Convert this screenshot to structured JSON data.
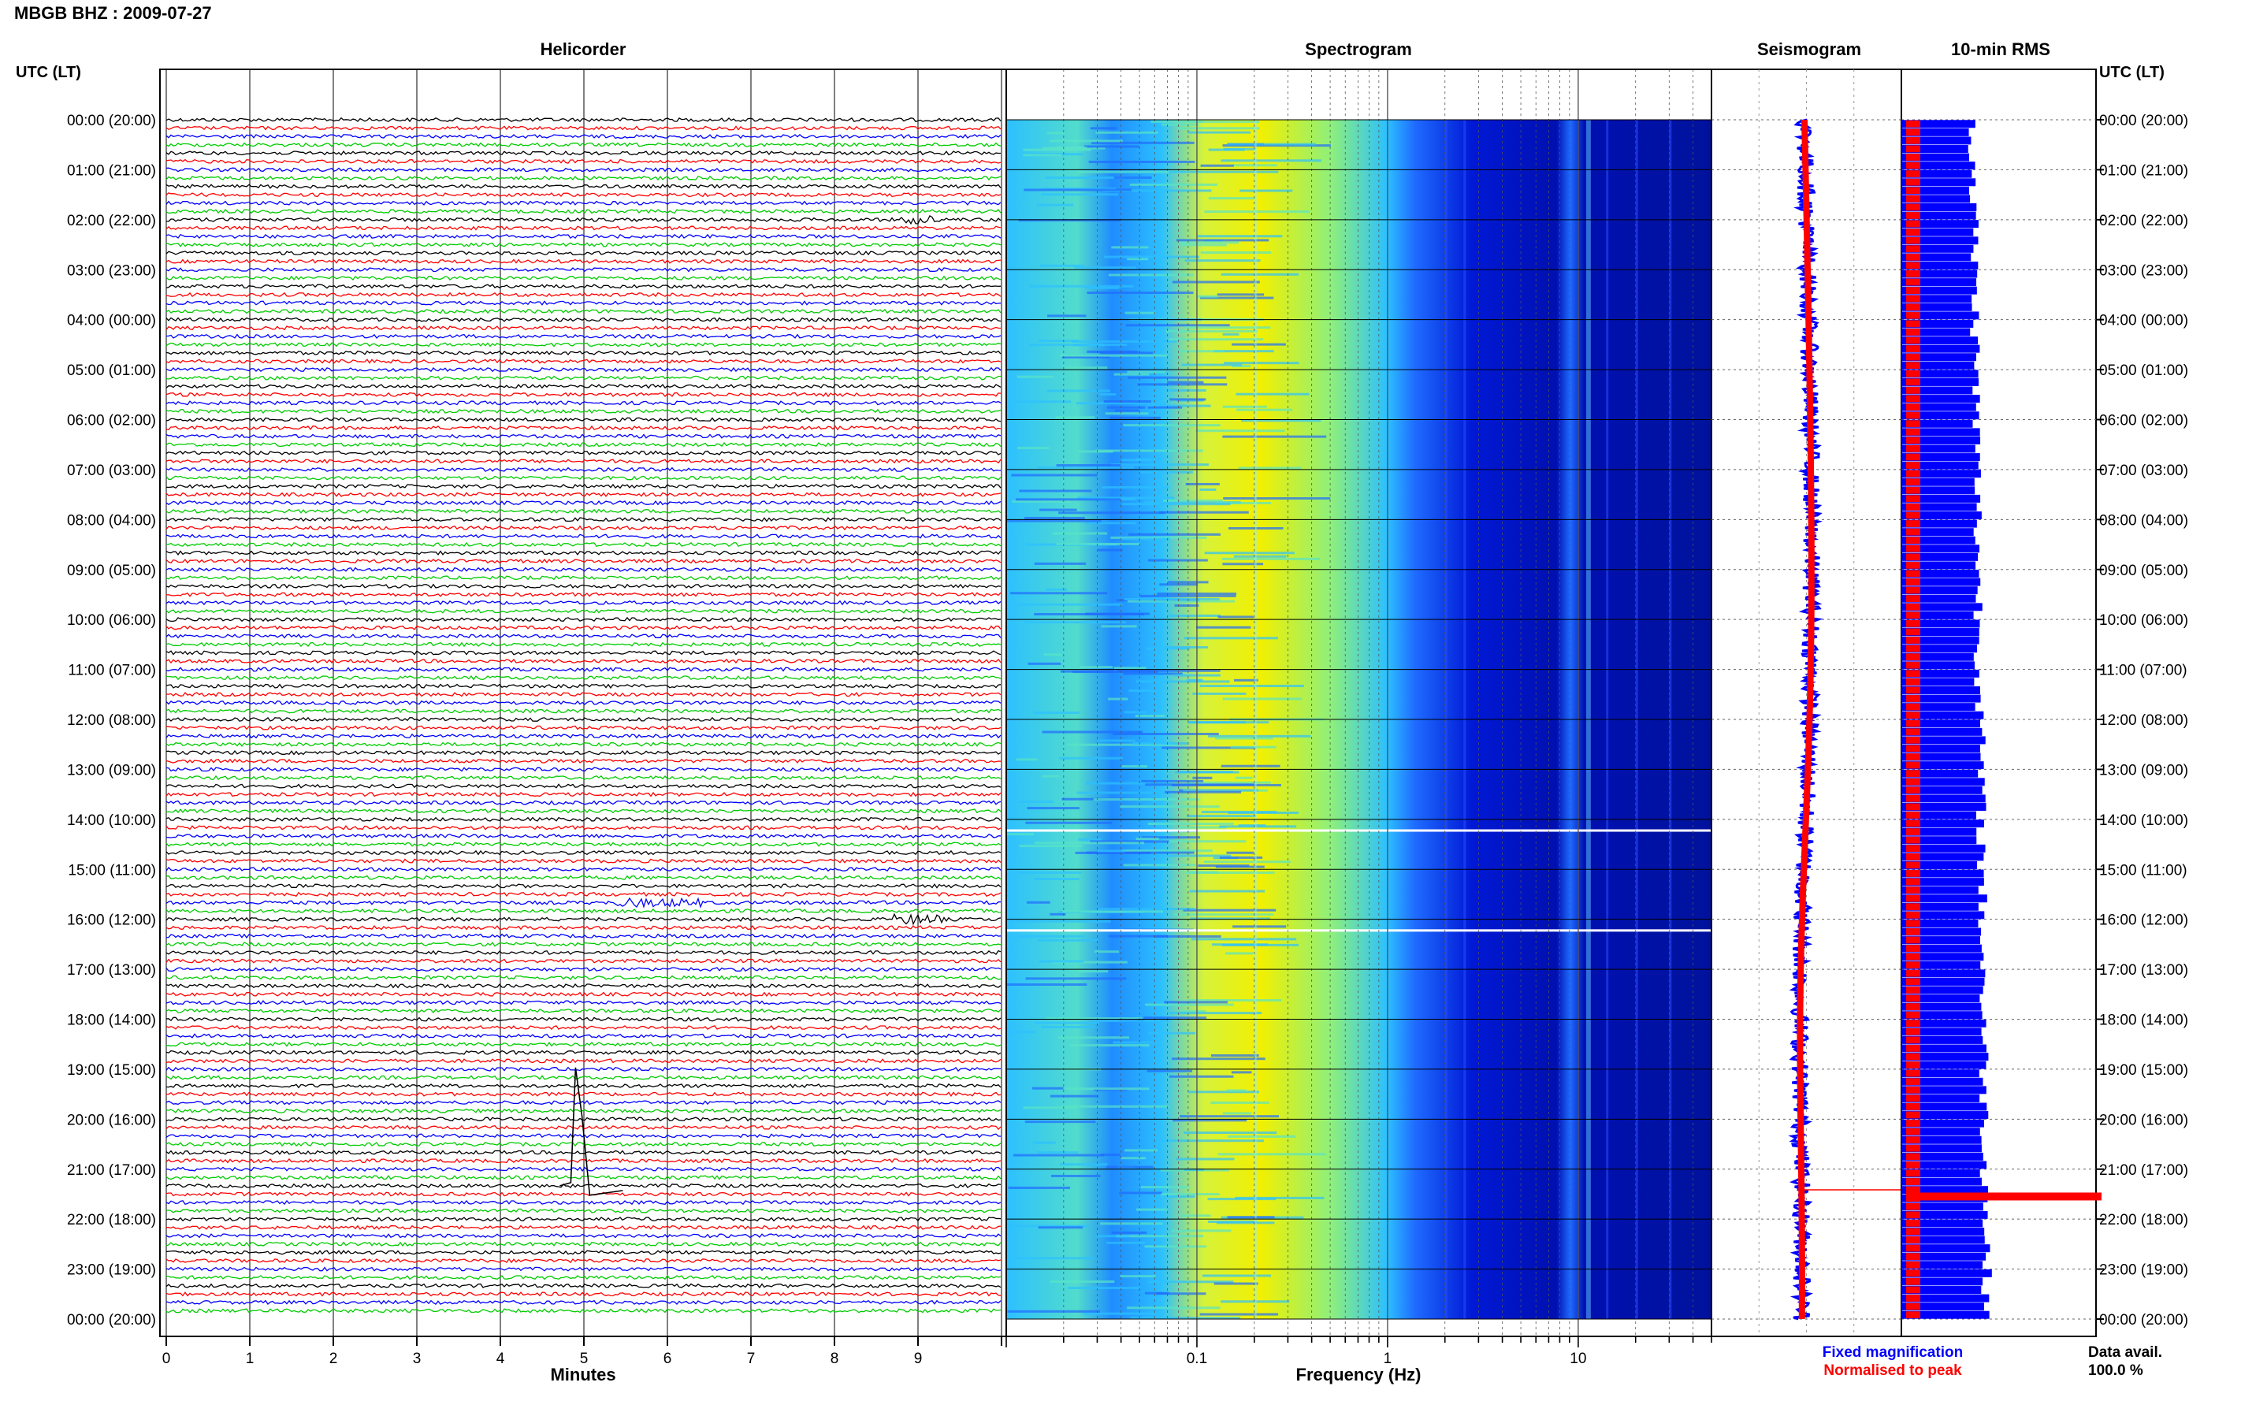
{
  "header": {
    "title": "MBGB BHZ : 2009-07-27",
    "time_label_left": "UTC (LT)",
    "time_label_right": "UTC (LT)"
  },
  "panels": {
    "helicorder": "Helicorder",
    "spectrogram": "Spectrogram",
    "seismogram": "Seismogram",
    "rms": "10-min RMS"
  },
  "chart_data": [
    {
      "type": "line",
      "name": "helicorder",
      "title": "Helicorder",
      "xlabel": "Minutes",
      "x_ticks": [
        "0",
        "1",
        "2",
        "3",
        "4",
        "5",
        "6",
        "7",
        "8",
        "9"
      ],
      "xlim": [
        0,
        10
      ],
      "rows_per_hour": 6,
      "trace_colors": [
        "#000000",
        "#ff0000",
        "#0000ff",
        "#00cc00"
      ],
      "y_tick_labels": [
        "00:00 (20:00)",
        "01:00 (21:00)",
        "02:00 (22:00)",
        "03:00 (23:00)",
        "04:00 (00:00)",
        "05:00 (01:00)",
        "06:00 (02:00)",
        "07:00 (03:00)",
        "08:00 (04:00)",
        "09:00 (05:00)",
        "10:00 (06:00)",
        "11:00 (07:00)",
        "12:00 (08:00)",
        "13:00 (09:00)",
        "14:00 (10:00)",
        "15:00 (11:00)",
        "16:00 (12:00)",
        "17:00 (13:00)",
        "18:00 (14:00)",
        "19:00 (15:00)",
        "20:00 (16:00)",
        "21:00 (17:00)",
        "22:00 (18:00)",
        "23:00 (19:00)",
        "00:00 (20:00)"
      ]
    },
    {
      "type": "heatmap",
      "name": "spectrogram",
      "title": "Spectrogram",
      "xlabel": "Frequency (Hz)",
      "x_scale": "log",
      "xlim": [
        0.01,
        50
      ],
      "x_tick_labels": [
        "0.1",
        "1",
        "10"
      ],
      "colormap": [
        "#00007a",
        "#0019d6",
        "#1f6bff",
        "#2cc0ff",
        "#59e4c6",
        "#d6f23a",
        "#f7f000"
      ]
    },
    {
      "type": "line",
      "name": "seismogram",
      "title": "Seismogram",
      "series": [
        {
          "name": "Fixed magnification",
          "color": "#0000ff"
        },
        {
          "name": "Normalised to peak",
          "color": "#ff0000"
        }
      ]
    },
    {
      "type": "bar",
      "name": "rms",
      "title": "10-min RMS",
      "orientation": "horizontal",
      "colors": {
        "fixed": "#0000ff",
        "normalised": "#ff0000"
      }
    }
  ],
  "legend": {
    "fixed": "Fixed magnification",
    "normalised": "Normalised to peak"
  },
  "availability": {
    "label": "Data avail.",
    "value": "100.0 %"
  }
}
